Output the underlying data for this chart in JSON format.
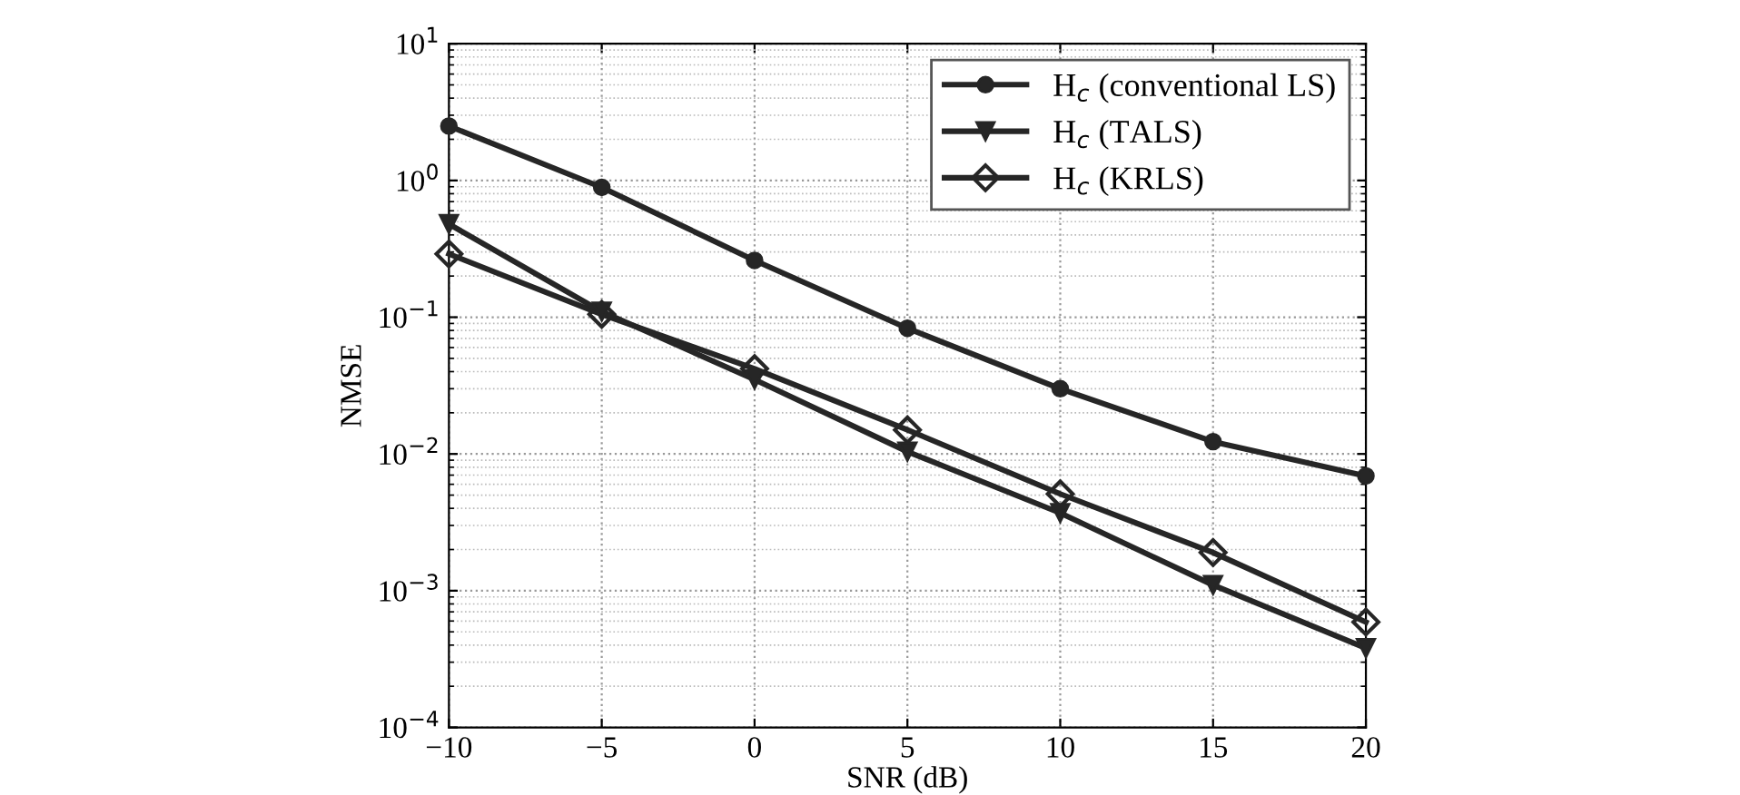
{
  "chart_data": {
    "type": "line",
    "xlabel": "SNR (dB)",
    "ylabel": "NMSE",
    "log": "y",
    "grid": true,
    "legend": "top right",
    "line_style": "solid",
    "x": [
      -10,
      -5,
      0,
      5,
      10,
      15,
      20
    ],
    "xlim": [
      -10,
      20
    ],
    "xticks": [
      {
        "value": -10,
        "label": "−10"
      },
      {
        "value": -5,
        "label": "−5"
      },
      0,
      5,
      10,
      15,
      20
    ],
    "ylim": [
      0.0001,
      10
    ],
    "yticks": [
      {
        "value": 0.0001,
        "label": "10$^{−4}$"
      },
      {
        "value": 0.001,
        "label": "10$^{−3}$"
      },
      {
        "value": 0.01,
        "label": "10$^{−2}$"
      },
      {
        "value": 0.1,
        "label": "10$^{−1}$"
      },
      {
        "value": 1,
        "label": "10$^{0}$"
      },
      {
        "value": 10,
        "label": "10$^{1}$"
      }
    ],
    "series": [
      {
        "name": "H$_{c}$ (conventional LS)",
        "color": "#262626",
        "marker": "circle",
        "values": [
          2.5,
          0.89,
          0.26,
          0.083,
          0.03,
          0.0123,
          0.0069
        ]
      },
      {
        "name": "H$_{c}$ (TALS)",
        "color": "#262626",
        "marker": "triangle",
        "values": [
          0.48,
          0.11,
          0.035,
          0.0104,
          0.0037,
          0.0011,
          0.00038
        ]
      },
      {
        "name": "H$_{c}$ (KRLS)",
        "color": "#262626",
        "marker": "diamond",
        "values": [
          0.29,
          0.105,
          0.042,
          0.015,
          0.0051,
          0.0019,
          0.00059
        ]
      }
    ]
  }
}
